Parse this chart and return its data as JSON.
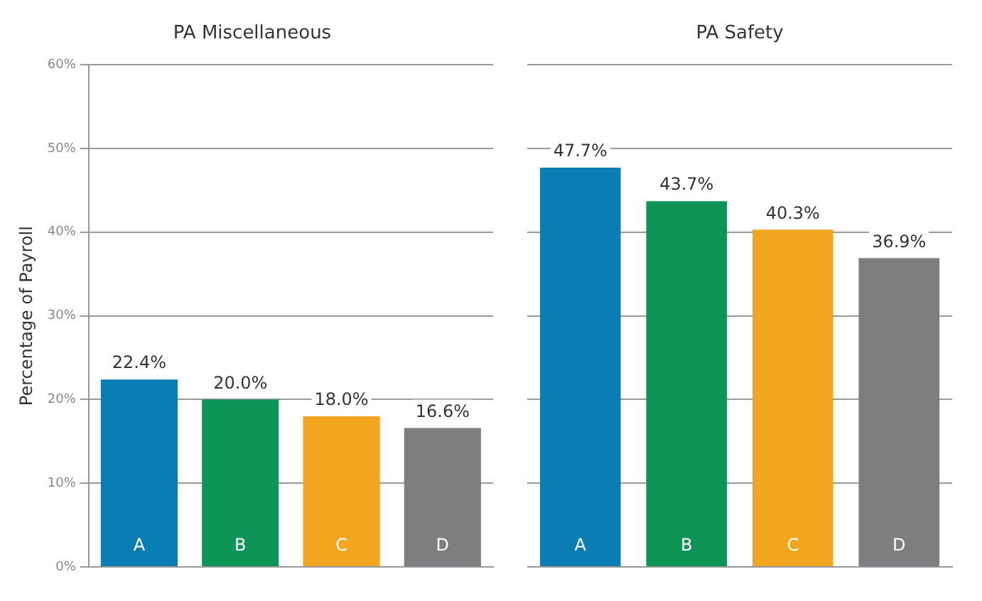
{
  "chart_data": [
    {
      "type": "bar",
      "title": "PA Miscellaneous",
      "ylabel": "Percentage of Payroll",
      "categories": [
        "A",
        "B",
        "C",
        "D"
      ],
      "values": [
        22.4,
        20.0,
        18.0,
        16.6
      ],
      "colors": [
        "#0a7db5",
        "#0d9456",
        "#f2a51f",
        "#7d7e80"
      ],
      "value_labels": [
        "22.4%",
        "20.0%",
        "18.0%",
        "16.6%"
      ],
      "ylim": [
        0,
        60
      ],
      "yticks": [
        {
          "value": 0,
          "label": "0%"
        },
        {
          "value": 10,
          "label": "10%"
        },
        {
          "value": 20,
          "label": "20%"
        },
        {
          "value": 30,
          "label": "30%"
        },
        {
          "value": 40,
          "label": "40%"
        },
        {
          "value": 50,
          "label": "50%"
        },
        {
          "value": 60,
          "label": "60%"
        }
      ],
      "grid": "y"
    },
    {
      "type": "bar",
      "title": "PA Safety",
      "categories": [
        "A",
        "B",
        "C",
        "D"
      ],
      "values": [
        47.7,
        43.7,
        40.3,
        36.9
      ],
      "colors": [
        "#0a7db5",
        "#0d9456",
        "#f2a51f",
        "#7d7e80"
      ],
      "value_labels": [
        "47.7%",
        "43.7%",
        "40.3%",
        "36.9%"
      ],
      "ylim": [
        0,
        60
      ],
      "yticks": [
        0,
        10,
        20,
        30,
        40,
        50,
        60
      ],
      "grid": "y",
      "tick_labels": "x"
    }
  ]
}
